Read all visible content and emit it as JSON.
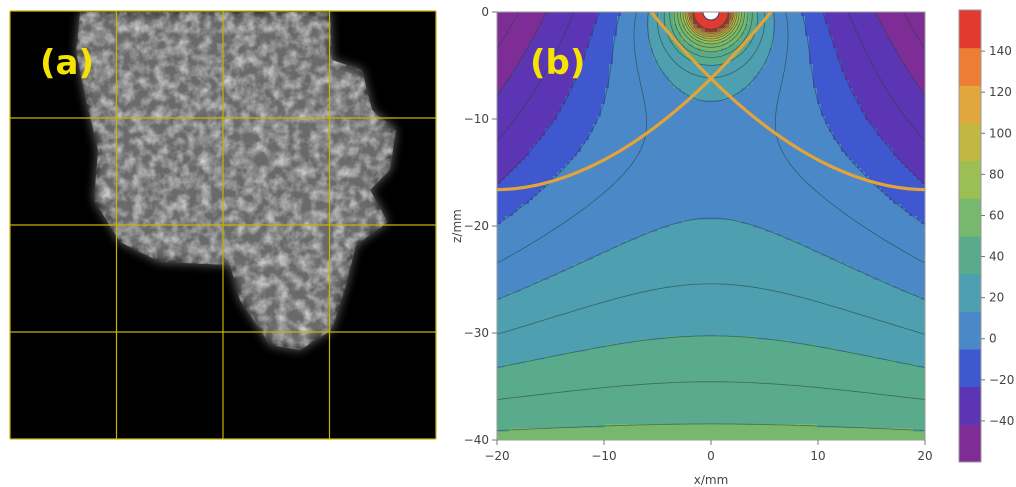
{
  "panel_a": {
    "label": "(a)",
    "label_color": "#f5e400",
    "grid_color": "#c8b400",
    "background": "#000000"
  },
  "panel_b": {
    "label": "(b)",
    "label_color": "#f5e400",
    "curve_color": "#e2a33a"
  },
  "chart_data": {
    "type": "contour",
    "xlabel": "x/mm",
    "ylabel": "z/mm",
    "xlim": [
      -20,
      20
    ],
    "ylim": [
      -40,
      0
    ],
    "xticks": [
      -20,
      -10,
      0,
      10,
      20
    ],
    "yticks": [
      0,
      -10,
      -20,
      -30,
      -40
    ],
    "contour_levels": [
      -50,
      -40,
      -30,
      -20,
      -10,
      0,
      10,
      20,
      30,
      40,
      50,
      60,
      70,
      80,
      90,
      100,
      110,
      120,
      130,
      140,
      150,
      160
    ],
    "source_point": [
      0,
      0
    ],
    "colorbar": {
      "min": -60,
      "max": 160,
      "ticks": [
        -40,
        -20,
        0,
        20,
        40,
        60,
        80,
        100,
        120,
        140
      ],
      "colors": [
        "#7e2d97",
        "#5b35b4",
        "#3f58d0",
        "#4a88c8",
        "#4e9fb0",
        "#5aab8c",
        "#78b86e",
        "#9bbe55",
        "#c1b743",
        "#e1a63d",
        "#ec7d34",
        "#e13a2f"
      ]
    },
    "highlight_contour": 100
  }
}
